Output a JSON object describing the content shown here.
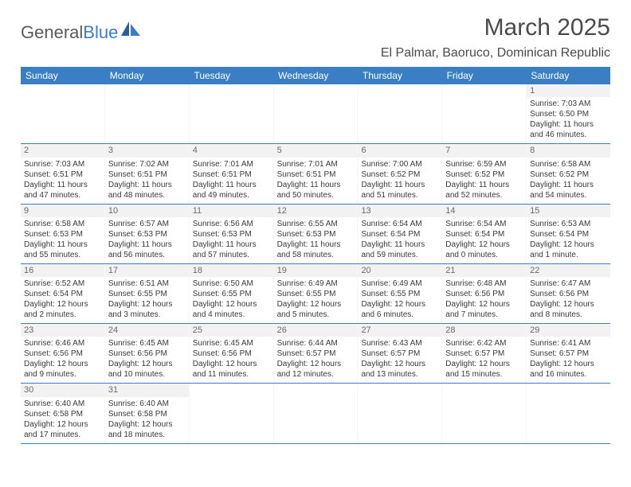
{
  "logo": {
    "text1": "General",
    "text2": "Blue"
  },
  "title": "March 2025",
  "location": "El Palmar, Baoruco, Dominican Republic",
  "colors": {
    "header_bg": "#3a7fc4",
    "text": "#333333"
  },
  "day_names": [
    "Sunday",
    "Monday",
    "Tuesday",
    "Wednesday",
    "Thursday",
    "Friday",
    "Saturday"
  ],
  "weeks": [
    [
      {
        "empty": true
      },
      {
        "empty": true
      },
      {
        "empty": true
      },
      {
        "empty": true
      },
      {
        "empty": true
      },
      {
        "empty": true
      },
      {
        "n": "1",
        "sunrise": "Sunrise: 7:03 AM",
        "sunset": "Sunset: 6:50 PM",
        "daylight1": "Daylight: 11 hours",
        "daylight2": "and 46 minutes."
      }
    ],
    [
      {
        "n": "2",
        "sunrise": "Sunrise: 7:03 AM",
        "sunset": "Sunset: 6:51 PM",
        "daylight1": "Daylight: 11 hours",
        "daylight2": "and 47 minutes."
      },
      {
        "n": "3",
        "sunrise": "Sunrise: 7:02 AM",
        "sunset": "Sunset: 6:51 PM",
        "daylight1": "Daylight: 11 hours",
        "daylight2": "and 48 minutes."
      },
      {
        "n": "4",
        "sunrise": "Sunrise: 7:01 AM",
        "sunset": "Sunset: 6:51 PM",
        "daylight1": "Daylight: 11 hours",
        "daylight2": "and 49 minutes."
      },
      {
        "n": "5",
        "sunrise": "Sunrise: 7:01 AM",
        "sunset": "Sunset: 6:51 PM",
        "daylight1": "Daylight: 11 hours",
        "daylight2": "and 50 minutes."
      },
      {
        "n": "6",
        "sunrise": "Sunrise: 7:00 AM",
        "sunset": "Sunset: 6:52 PM",
        "daylight1": "Daylight: 11 hours",
        "daylight2": "and 51 minutes."
      },
      {
        "n": "7",
        "sunrise": "Sunrise: 6:59 AM",
        "sunset": "Sunset: 6:52 PM",
        "daylight1": "Daylight: 11 hours",
        "daylight2": "and 52 minutes."
      },
      {
        "n": "8",
        "sunrise": "Sunrise: 6:58 AM",
        "sunset": "Sunset: 6:52 PM",
        "daylight1": "Daylight: 11 hours",
        "daylight2": "and 54 minutes."
      }
    ],
    [
      {
        "n": "9",
        "sunrise": "Sunrise: 6:58 AM",
        "sunset": "Sunset: 6:53 PM",
        "daylight1": "Daylight: 11 hours",
        "daylight2": "and 55 minutes."
      },
      {
        "n": "10",
        "sunrise": "Sunrise: 6:57 AM",
        "sunset": "Sunset: 6:53 PM",
        "daylight1": "Daylight: 11 hours",
        "daylight2": "and 56 minutes."
      },
      {
        "n": "11",
        "sunrise": "Sunrise: 6:56 AM",
        "sunset": "Sunset: 6:53 PM",
        "daylight1": "Daylight: 11 hours",
        "daylight2": "and 57 minutes."
      },
      {
        "n": "12",
        "sunrise": "Sunrise: 6:55 AM",
        "sunset": "Sunset: 6:53 PM",
        "daylight1": "Daylight: 11 hours",
        "daylight2": "and 58 minutes."
      },
      {
        "n": "13",
        "sunrise": "Sunrise: 6:54 AM",
        "sunset": "Sunset: 6:54 PM",
        "daylight1": "Daylight: 11 hours",
        "daylight2": "and 59 minutes."
      },
      {
        "n": "14",
        "sunrise": "Sunrise: 6:54 AM",
        "sunset": "Sunset: 6:54 PM",
        "daylight1": "Daylight: 12 hours",
        "daylight2": "and 0 minutes."
      },
      {
        "n": "15",
        "sunrise": "Sunrise: 6:53 AM",
        "sunset": "Sunset: 6:54 PM",
        "daylight1": "Daylight: 12 hours",
        "daylight2": "and 1 minute."
      }
    ],
    [
      {
        "n": "16",
        "sunrise": "Sunrise: 6:52 AM",
        "sunset": "Sunset: 6:54 PM",
        "daylight1": "Daylight: 12 hours",
        "daylight2": "and 2 minutes."
      },
      {
        "n": "17",
        "sunrise": "Sunrise: 6:51 AM",
        "sunset": "Sunset: 6:55 PM",
        "daylight1": "Daylight: 12 hours",
        "daylight2": "and 3 minutes."
      },
      {
        "n": "18",
        "sunrise": "Sunrise: 6:50 AM",
        "sunset": "Sunset: 6:55 PM",
        "daylight1": "Daylight: 12 hours",
        "daylight2": "and 4 minutes."
      },
      {
        "n": "19",
        "sunrise": "Sunrise: 6:49 AM",
        "sunset": "Sunset: 6:55 PM",
        "daylight1": "Daylight: 12 hours",
        "daylight2": "and 5 minutes."
      },
      {
        "n": "20",
        "sunrise": "Sunrise: 6:49 AM",
        "sunset": "Sunset: 6:55 PM",
        "daylight1": "Daylight: 12 hours",
        "daylight2": "and 6 minutes."
      },
      {
        "n": "21",
        "sunrise": "Sunrise: 6:48 AM",
        "sunset": "Sunset: 6:56 PM",
        "daylight1": "Daylight: 12 hours",
        "daylight2": "and 7 minutes."
      },
      {
        "n": "22",
        "sunrise": "Sunrise: 6:47 AM",
        "sunset": "Sunset: 6:56 PM",
        "daylight1": "Daylight: 12 hours",
        "daylight2": "and 8 minutes."
      }
    ],
    [
      {
        "n": "23",
        "sunrise": "Sunrise: 6:46 AM",
        "sunset": "Sunset: 6:56 PM",
        "daylight1": "Daylight: 12 hours",
        "daylight2": "and 9 minutes."
      },
      {
        "n": "24",
        "sunrise": "Sunrise: 6:45 AM",
        "sunset": "Sunset: 6:56 PM",
        "daylight1": "Daylight: 12 hours",
        "daylight2": "and 10 minutes."
      },
      {
        "n": "25",
        "sunrise": "Sunrise: 6:45 AM",
        "sunset": "Sunset: 6:56 PM",
        "daylight1": "Daylight: 12 hours",
        "daylight2": "and 11 minutes."
      },
      {
        "n": "26",
        "sunrise": "Sunrise: 6:44 AM",
        "sunset": "Sunset: 6:57 PM",
        "daylight1": "Daylight: 12 hours",
        "daylight2": "and 12 minutes."
      },
      {
        "n": "27",
        "sunrise": "Sunrise: 6:43 AM",
        "sunset": "Sunset: 6:57 PM",
        "daylight1": "Daylight: 12 hours",
        "daylight2": "and 13 minutes."
      },
      {
        "n": "28",
        "sunrise": "Sunrise: 6:42 AM",
        "sunset": "Sunset: 6:57 PM",
        "daylight1": "Daylight: 12 hours",
        "daylight2": "and 15 minutes."
      },
      {
        "n": "29",
        "sunrise": "Sunrise: 6:41 AM",
        "sunset": "Sunset: 6:57 PM",
        "daylight1": "Daylight: 12 hours",
        "daylight2": "and 16 minutes."
      }
    ],
    [
      {
        "n": "30",
        "sunrise": "Sunrise: 6:40 AM",
        "sunset": "Sunset: 6:58 PM",
        "daylight1": "Daylight: 12 hours",
        "daylight2": "and 17 minutes."
      },
      {
        "n": "31",
        "sunrise": "Sunrise: 6:40 AM",
        "sunset": "Sunset: 6:58 PM",
        "daylight1": "Daylight: 12 hours",
        "daylight2": "and 18 minutes."
      },
      {
        "empty": true
      },
      {
        "empty": true
      },
      {
        "empty": true
      },
      {
        "empty": true
      },
      {
        "empty": true
      }
    ]
  ]
}
